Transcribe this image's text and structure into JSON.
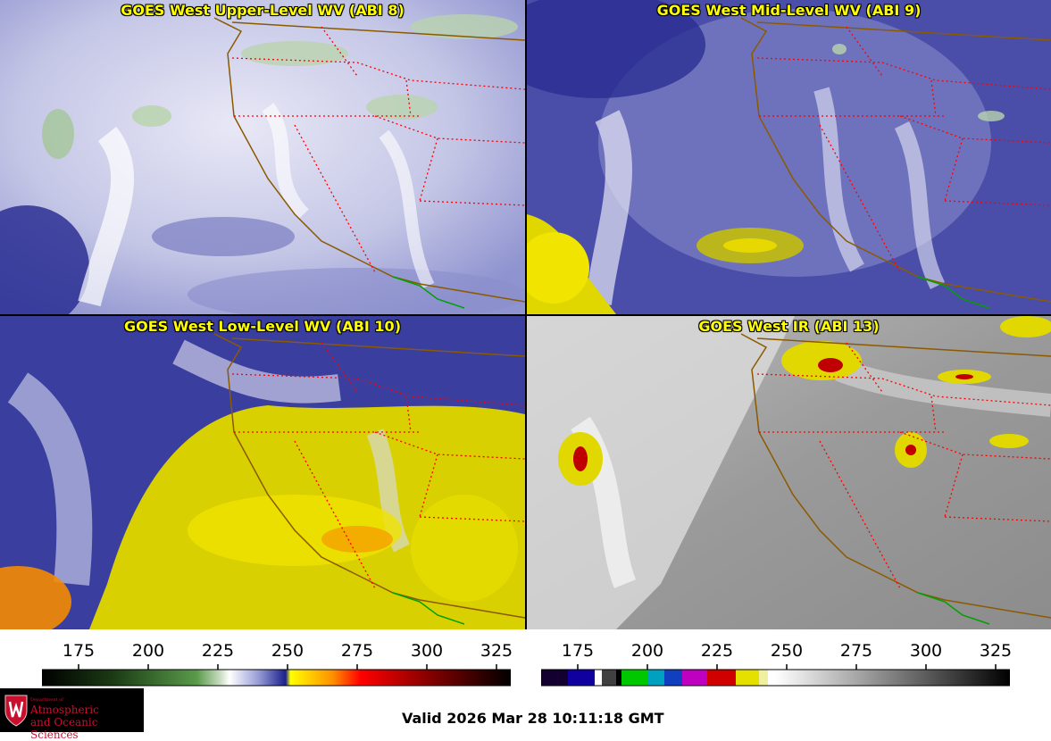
{
  "panels": [
    {
      "title": "GOES West Upper-Level WV (ABI 8)",
      "product": "water-vapor"
    },
    {
      "title": "GOES West Mid-Level WV (ABI 9)",
      "product": "water-vapor"
    },
    {
      "title": "GOES West Low-Level WV (ABI 10)",
      "product": "water-vapor"
    },
    {
      "title": "GOES West IR (ABI 13)",
      "product": "infrared"
    }
  ],
  "colorbars": {
    "wv": {
      "ticks": [
        "175",
        "200",
        "225",
        "250",
        "275",
        "300",
        "325"
      ]
    },
    "ir": {
      "ticks": [
        "175",
        "200",
        "225",
        "250",
        "275",
        "300",
        "325"
      ]
    }
  },
  "footer": {
    "valid_time": "Valid 2026 Mar 28 10:11:18 GMT",
    "logo_line1": "Department of",
    "logo_line2": "Atmospheric",
    "logo_line3": "and Oceanic Sciences"
  },
  "colors": {
    "title_text": "#ffff00",
    "state_borders": "#ff0000",
    "coastline": "#8b5a00",
    "mexico_border": "#00a000",
    "logo_red": "#c8102e"
  }
}
